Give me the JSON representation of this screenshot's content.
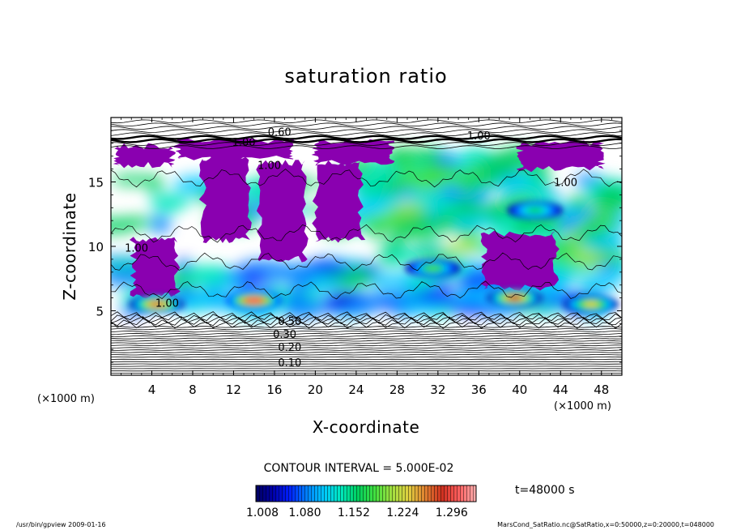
{
  "chart_data": {
    "type": "heatmap",
    "title": "saturation ratio",
    "xlabel": "X-coordinate",
    "ylabel": "Z-coordinate",
    "x_unit_label": "(×1000 m)",
    "y_unit_label": "(×1000 m)",
    "xlim": [
      0,
      50
    ],
    "ylim": [
      0,
      20
    ],
    "x_ticks": [
      4,
      8,
      12,
      16,
      20,
      24,
      28,
      32,
      36,
      40,
      44,
      48
    ],
    "x_tick_labels": [
      "4",
      "8",
      "12",
      "16",
      "20",
      "24",
      "28",
      "32",
      "36",
      "40",
      "44",
      "48"
    ],
    "y_ticks": [
      5,
      10,
      15
    ],
    "y_tick_labels": [
      "5",
      "10",
      "15"
    ],
    "contour_labels": [
      {
        "text": "0.60",
        "x": 16.5,
        "z": 18.6
      },
      {
        "text": "1.00",
        "x": 13.0,
        "z": 17.8
      },
      {
        "text": "1.00",
        "x": 15.5,
        "z": 16.0
      },
      {
        "text": "1.00",
        "x": 2.5,
        "z": 9.6
      },
      {
        "text": "1.00",
        "x": 5.5,
        "z": 5.3
      },
      {
        "text": "0.50",
        "x": 17.5,
        "z": 3.9
      },
      {
        "text": "0.30",
        "x": 17.0,
        "z": 2.9
      },
      {
        "text": "0.20",
        "x": 17.5,
        "z": 1.9
      },
      {
        "text": "0.10",
        "x": 17.5,
        "z": 0.7
      },
      {
        "text": "1.00",
        "x": 44.5,
        "z": 14.7
      },
      {
        "text": "1.00",
        "x": 36.0,
        "z": 18.3
      }
    ],
    "saturated_regions": [
      {
        "x0": 6.5,
        "x1": 17.8,
        "z0": 16.8,
        "z1": 18.2
      },
      {
        "x0": 20.0,
        "x1": 27.5,
        "z0": 16.5,
        "z1": 18.2
      },
      {
        "x0": 9.0,
        "x1": 13.5,
        "z0": 10.5,
        "z1": 16.8
      },
      {
        "x0": 14.5,
        "x1": 19.0,
        "z0": 9.0,
        "z1": 16.5
      },
      {
        "x0": 2.2,
        "x1": 6.5,
        "z0": 6.2,
        "z1": 10.5
      },
      {
        "x0": 20.0,
        "x1": 24.5,
        "z0": 10.5,
        "z1": 16.5
      },
      {
        "x0": 36.5,
        "x1": 43.5,
        "z0": 6.8,
        "z1": 11.0
      },
      {
        "x0": 0.5,
        "x1": 6.0,
        "z0": 16.3,
        "z1": 17.8
      },
      {
        "x0": 40.0,
        "x1": 48.0,
        "z0": 16.0,
        "z1": 18.0
      }
    ],
    "hot_spots": [
      {
        "x": 4.5,
        "z": 5.5,
        "value": 1.26
      },
      {
        "x": 14.0,
        "z": 5.8,
        "value": 1.3
      },
      {
        "x": 31.5,
        "z": 8.3,
        "value": 1.18
      },
      {
        "x": 39.5,
        "z": 6.0,
        "value": 1.27
      },
      {
        "x": 47.0,
        "z": 5.5,
        "value": 1.22
      },
      {
        "x": 41.5,
        "z": 12.8,
        "value": 1.16
      }
    ],
    "colorbar": {
      "min": 1.008,
      "max": 1.332,
      "tick_labels": [
        "1.008",
        "1.080",
        "1.152",
        "1.224",
        "1.296"
      ],
      "colors": [
        "#000060",
        "#0000a8",
        "#0020ff",
        "#0080ff",
        "#00c8ff",
        "#00e8c0",
        "#00d060",
        "#40e040",
        "#a0e040",
        "#e0d040",
        "#e08030",
        "#d03020",
        "#ff6060",
        "#ffb0b0"
      ]
    },
    "contour_interval_text": "CONTOUR INTERVAL = 5.000E-02",
    "time_text": "t=48000 s"
  },
  "footer": {
    "left": "/usr/bin/gpview  2009-01-16",
    "right": "MarsCond_SatRatio.nc@SatRatio,x=0:50000,z=0:20000,t=048000"
  },
  "colors": {
    "saturated_fill": "#8a00b0",
    "axis": "#000000",
    "background": "#ffffff"
  }
}
